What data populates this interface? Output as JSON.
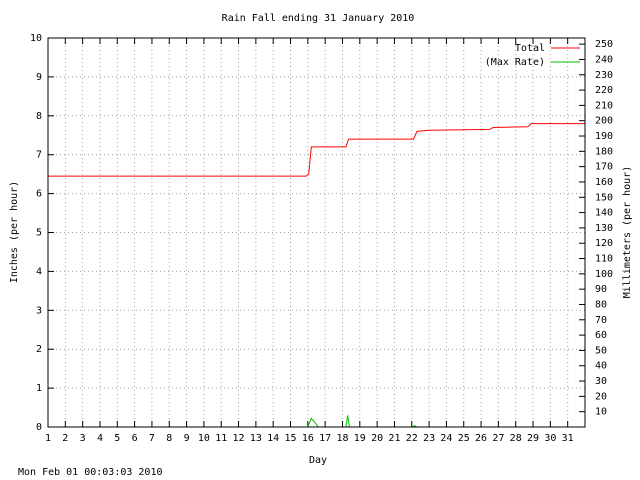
{
  "chart_data": {
    "type": "line",
    "title": "Rain Fall ending 31 January 2010",
    "xlabel": "Day",
    "ylabel": "Inches (per hour)",
    "y2label": "Millimeters (per hour)",
    "timestamp": "Mon Feb 01 00:03:03 2010",
    "xlim": [
      1,
      32
    ],
    "xticks": [
      1,
      2,
      3,
      4,
      5,
      6,
      7,
      8,
      9,
      10,
      11,
      12,
      13,
      14,
      15,
      16,
      17,
      18,
      19,
      20,
      21,
      22,
      23,
      24,
      25,
      26,
      27,
      28,
      29,
      30,
      31
    ],
    "ylim": [
      0,
      10
    ],
    "yticks": [
      0,
      1,
      2,
      3,
      4,
      5,
      6,
      7,
      8,
      9,
      10
    ],
    "y2lim": [
      0,
      254
    ],
    "y2ticks": [
      10,
      20,
      30,
      40,
      50,
      60,
      70,
      80,
      90,
      100,
      110,
      120,
      130,
      140,
      150,
      160,
      170,
      180,
      190,
      200,
      210,
      220,
      230,
      240,
      250
    ],
    "grid": true,
    "legend": "top-right",
    "series": [
      {
        "name": "Total",
        "color": "#ff0000",
        "x": [
          1,
          15.9,
          16.05,
          16.2,
          18.2,
          18.35,
          22.1,
          22.3,
          23,
          26.5,
          26.7,
          28.7,
          28.9,
          32
        ],
        "values": [
          6.45,
          6.45,
          6.5,
          7.2,
          7.2,
          7.4,
          7.4,
          7.6,
          7.63,
          7.65,
          7.7,
          7.72,
          7.8,
          7.8
        ]
      },
      {
        "name": "(Max Rate)",
        "color": "#00c000",
        "x": [
          16,
          16.2,
          16.4,
          16.6,
          17,
          18.2,
          18.3,
          18.4,
          20,
          22.0,
          22.15,
          22.3
        ],
        "values": [
          0,
          0.22,
          0.12,
          0,
          null,
          0,
          0.3,
          0,
          null,
          0,
          0.03,
          0
        ]
      }
    ]
  }
}
